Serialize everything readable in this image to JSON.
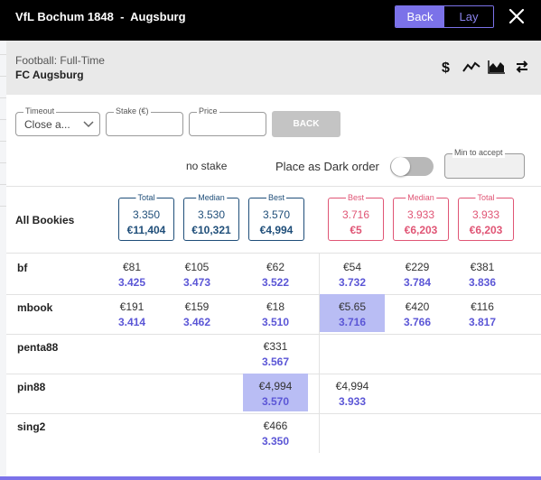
{
  "window": {
    "title": "VfL Bochum 1848  -  Augsburg",
    "back_label": "Back",
    "lay_label": "Lay"
  },
  "market": {
    "type": "Football: Full-Time",
    "selection": "FC Augsburg",
    "icons": [
      "dollar-icon",
      "line-chart-icon",
      "area-chart-icon",
      "swap-icon"
    ]
  },
  "form": {
    "timeout_label": "Timeout",
    "timeout_value": "Close a...",
    "stake_label": "Stake (€)",
    "stake_value": "",
    "price_label": "Price",
    "price_value": "",
    "back_button": "BACK",
    "no_stake": "no stake",
    "dark_order_label": "Place as Dark order",
    "dark_order_on": false,
    "min_accept_label": "Min to accept",
    "min_accept_value": ""
  },
  "summary": {
    "label": "All Bookies",
    "back": [
      {
        "label": "Total",
        "price": "3.350",
        "amount": "€11,404"
      },
      {
        "label": "Median",
        "price": "3.530",
        "amount": "€10,321"
      },
      {
        "label": "Best",
        "price": "3.570",
        "amount": "€4,994"
      }
    ],
    "lay": [
      {
        "label": "Best",
        "price": "3.716",
        "amount": "€5"
      },
      {
        "label": "Median",
        "price": "3.933",
        "amount": "€6,203"
      },
      {
        "label": "Total",
        "price": "3.933",
        "amount": "€6,203"
      }
    ]
  },
  "bookies": [
    {
      "name": "bf",
      "cells": [
        {
          "amount": "€81",
          "price": "3.425"
        },
        {
          "amount": "€105",
          "price": "3.473"
        },
        {
          "amount": "€62",
          "price": "3.522"
        },
        {
          "amount": "€54",
          "price": "3.732"
        },
        {
          "amount": "€229",
          "price": "3.784"
        },
        {
          "amount": "€381",
          "price": "3.836"
        }
      ]
    },
    {
      "name": "mbook",
      "cells": [
        {
          "amount": "€191",
          "price": "3.414"
        },
        {
          "amount": "€159",
          "price": "3.462"
        },
        {
          "amount": "€18",
          "price": "3.510"
        },
        {
          "amount": "€5.65",
          "price": "3.716",
          "highlight": true
        },
        {
          "amount": "€420",
          "price": "3.766"
        },
        {
          "amount": "€116",
          "price": "3.817"
        }
      ]
    },
    {
      "name": "penta88",
      "cells": [
        null,
        null,
        {
          "amount": "€331",
          "price": "3.567"
        },
        null,
        null,
        null
      ]
    },
    {
      "name": "pin88",
      "cells": [
        null,
        null,
        {
          "amount": "€4,994",
          "price": "3.570",
          "highlight": true
        },
        {
          "amount": "€4,994",
          "price": "3.933"
        },
        null,
        null
      ]
    },
    {
      "name": "sing2",
      "cells": [
        null,
        null,
        {
          "amount": "€466",
          "price": "3.350"
        },
        null,
        null,
        null
      ]
    }
  ],
  "colors": {
    "accent": "#7b72e9",
    "back_border": "#1f4e79",
    "lay_border": "#e05575",
    "price_text": "#5b56d6",
    "highlight": "#b9bdf4"
  }
}
